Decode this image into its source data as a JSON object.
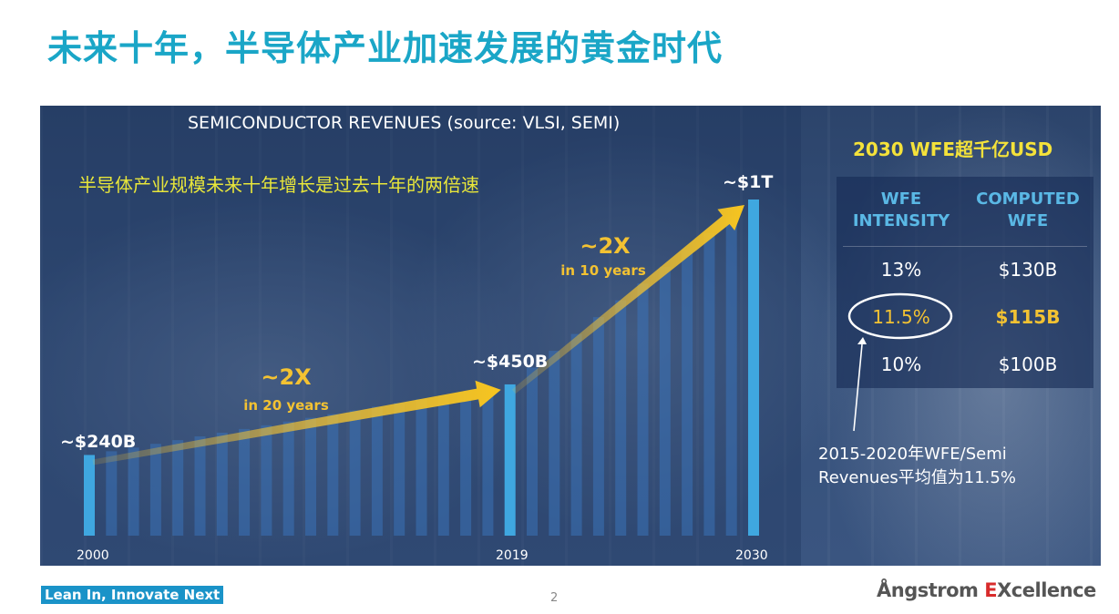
{
  "slide": {
    "title": "未来十年，半导体产业加速发展的黄金时代",
    "page_number": "2",
    "tagline": "Lean In, Innovate Next",
    "brand_prefix": "Ångstrom ",
    "brand_accent": "E",
    "brand_suffix": "Xcellence"
  },
  "chart_data": {
    "type": "bar",
    "title": "SEMICONDUCTOR REVENUES (source: VLSI, SEMI)",
    "subtitle": "半导体产业规模未来十年增长是过去十年的两倍速",
    "x_tick_labels": [
      "2000",
      "2019",
      "2030"
    ],
    "highlighted_bars": [
      {
        "year": "2000",
        "label": "~$240B",
        "value_billion": 240
      },
      {
        "year": "2019",
        "label": "~$450B",
        "value_billion": 450
      },
      {
        "year": "2030",
        "label": "~$1T",
        "value_billion": 1000
      }
    ],
    "growth_annotations": [
      {
        "multiple": "~2X",
        "period": "in 20 years",
        "from": "2000",
        "to": "2019"
      },
      {
        "multiple": "~2X",
        "period": "in 10 years",
        "from": "2019",
        "to": "2030"
      }
    ],
    "ylim": [
      0,
      1000
    ],
    "colors": {
      "highlight_bar": "#3fa7e0",
      "background_bar": "#3a72b8",
      "arrow": "#f3c232"
    }
  },
  "wfe_table": {
    "heading": "2030 WFE超千亿USD",
    "headers": [
      "WFE\nINTENSITY",
      "COMPUTED\nWFE"
    ],
    "rows": [
      {
        "intensity": "13%",
        "wfe": "$130B"
      },
      {
        "intensity": "11.5%",
        "wfe": "$115B",
        "highlighted": true
      },
      {
        "intensity": "10%",
        "wfe": "$100B"
      }
    ],
    "note_line1": "2015-2020年WFE/Semi",
    "note_line2": "Revenues平均值为11.5%"
  }
}
